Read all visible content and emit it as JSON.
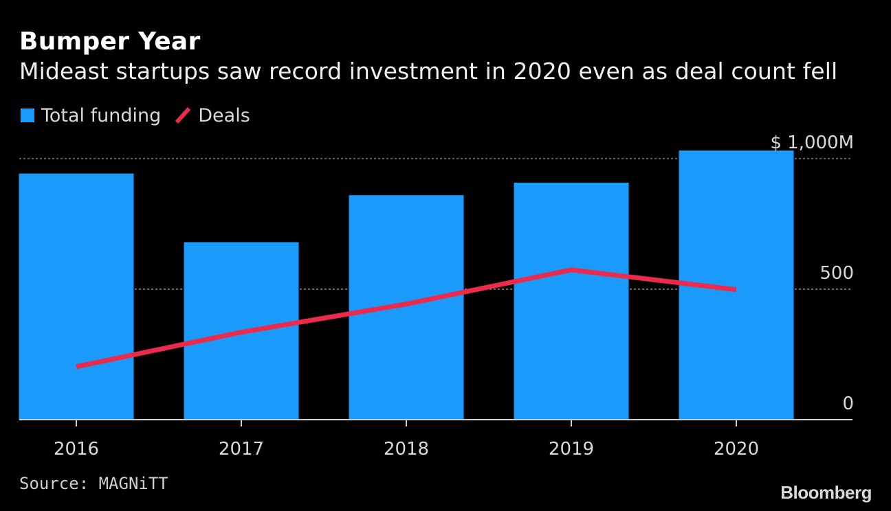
{
  "header": {
    "title": "Bumper Year",
    "subtitle": "Mideast startups saw record investment in 2020 even as deal count fell"
  },
  "legend": {
    "funding_label": "Total funding",
    "deals_label": "Deals"
  },
  "footer": {
    "source": "Source: MAGNiTT",
    "brand": "Bloomberg"
  },
  "colors": {
    "bar": "#1a9bfc",
    "line": "#ec2a4b",
    "grid": "#8a8a8a",
    "axis": "#cfcfcf",
    "background": "#000000"
  },
  "chart_data": {
    "type": "bar",
    "title": "Bumper Year",
    "subtitle": "Mideast startups saw record investment in 2020 even as deal count fell",
    "categories": [
      "2016",
      "2017",
      "2018",
      "2019",
      "2020"
    ],
    "series": [
      {
        "name": "Total funding",
        "type": "bar",
        "unit": "$M",
        "values": [
          943,
          680,
          860,
          908,
          1031
        ]
      },
      {
        "name": "Deals",
        "type": "line",
        "values": [
          203,
          335,
          443,
          574,
          498
        ]
      }
    ],
    "yaxis": {
      "range": [
        0,
        1000
      ],
      "ticks": [
        0,
        500,
        1000
      ],
      "tick_labels": [
        "0",
        "500",
        "$ 1,000M"
      ],
      "side": "right"
    },
    "xlabel": "",
    "ylabel": "",
    "grid": true,
    "legend_position": "top-left"
  }
}
